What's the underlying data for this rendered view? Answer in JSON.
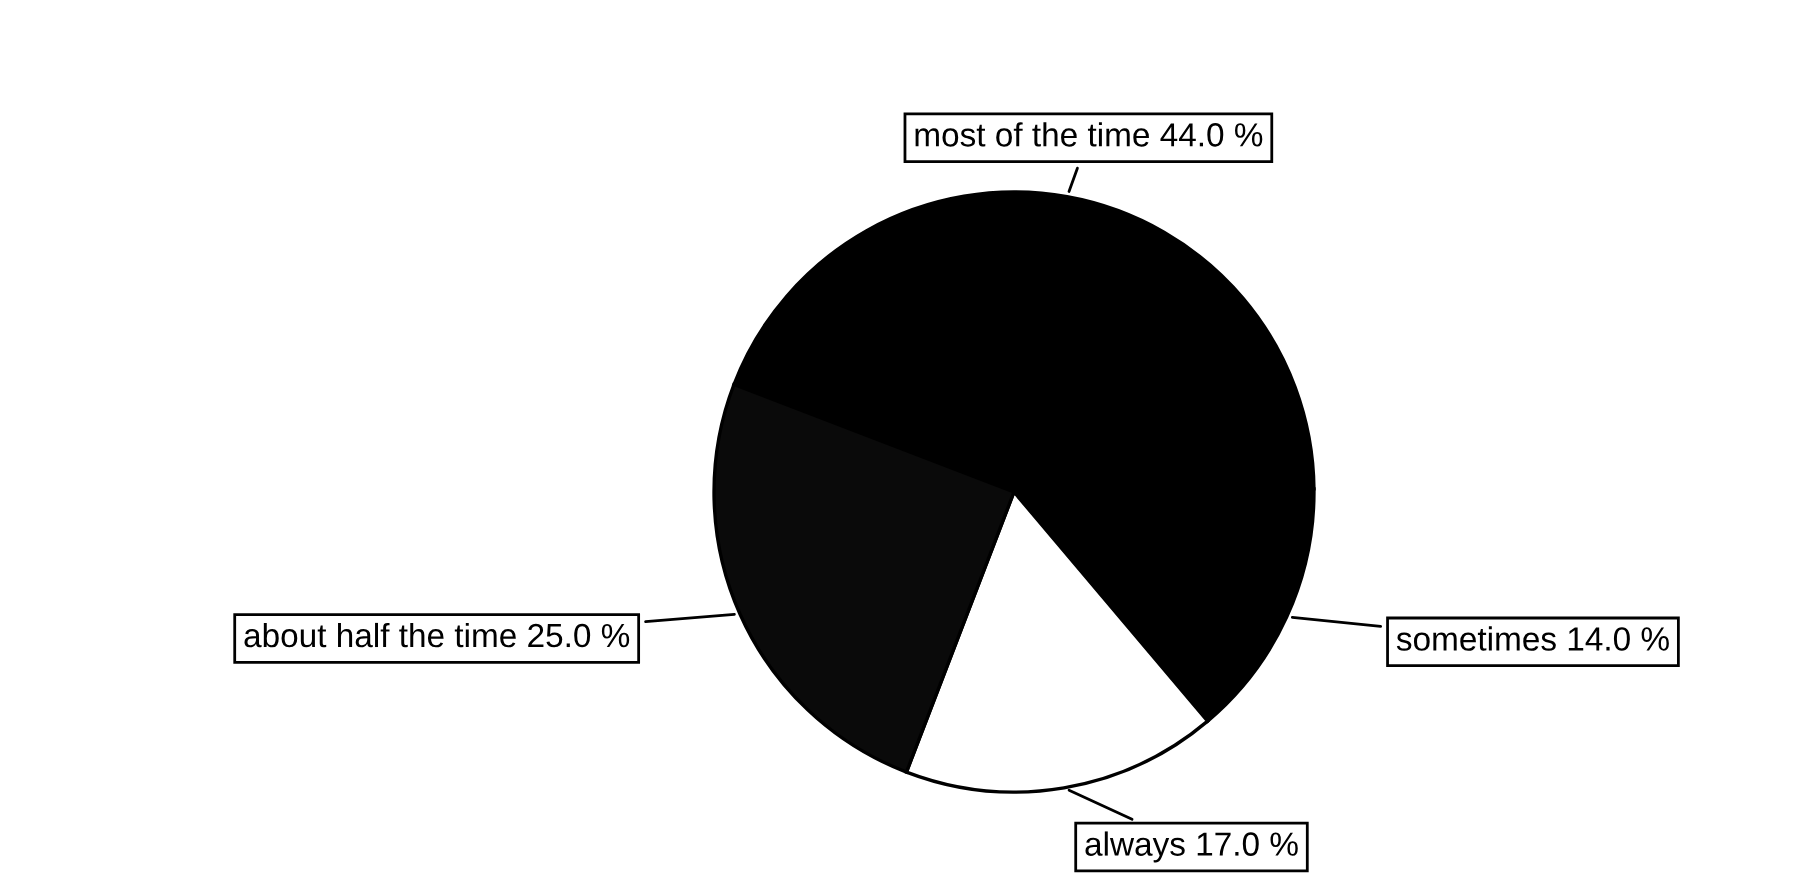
{
  "chart_data": {
    "type": "pie",
    "categories": [
      "most of the time",
      "sometimes",
      "always",
      "about half the time"
    ],
    "values": [
      44,
      14,
      17,
      25
    ],
    "value_labels": [
      "44.0 %",
      "14.0 %",
      "17.0 %",
      "25.0 %"
    ],
    "colors": [
      "#000000",
      "#000000",
      "#ffffff",
      "#0a0a0a"
    ]
  }
}
